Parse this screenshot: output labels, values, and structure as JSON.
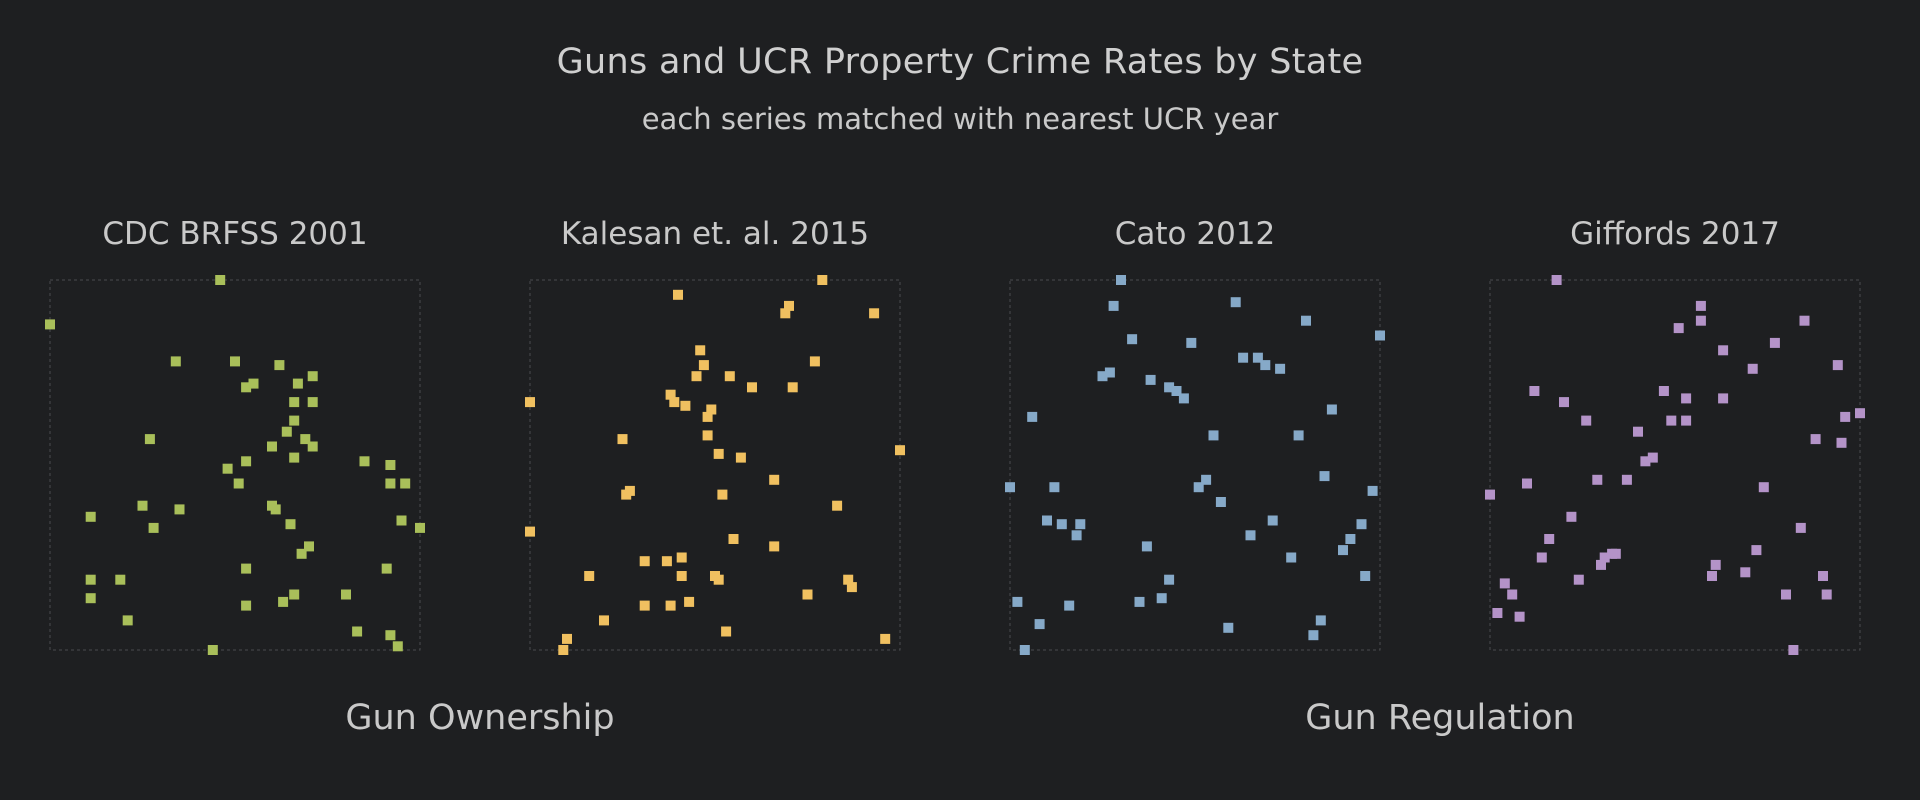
{
  "chart_data": {
    "type": "scatter",
    "title": "Guns and UCR Property Crime Rates by State",
    "subtitle": "each series matched with nearest UCR year",
    "groups": [
      "Gun Ownership",
      "Gun Regulation"
    ],
    "grid": false,
    "xlim": [
      0,
      1
    ],
    "ylim": [
      0,
      1
    ],
    "panels": [
      {
        "name": "CDC BRFSS 2001",
        "group": "Gun Ownership",
        "color": "#a9bf5a",
        "points": [
          [
            0.46,
            1.0
          ],
          [
            0.0,
            0.88
          ],
          [
            0.34,
            0.78
          ],
          [
            0.5,
            0.78
          ],
          [
            0.62,
            0.77
          ],
          [
            0.71,
            0.74
          ],
          [
            0.67,
            0.72
          ],
          [
            0.53,
            0.71
          ],
          [
            0.55,
            0.72
          ],
          [
            0.66,
            0.67
          ],
          [
            0.71,
            0.67
          ],
          [
            0.66,
            0.62
          ],
          [
            0.64,
            0.59
          ],
          [
            0.69,
            0.57
          ],
          [
            0.27,
            0.57
          ],
          [
            0.6,
            0.55
          ],
          [
            0.71,
            0.55
          ],
          [
            0.85,
            0.51
          ],
          [
            0.92,
            0.5
          ],
          [
            0.48,
            0.49
          ],
          [
            0.53,
            0.51
          ],
          [
            0.66,
            0.52
          ],
          [
            0.51,
            0.45
          ],
          [
            0.92,
            0.45
          ],
          [
            0.96,
            0.45
          ],
          [
            0.25,
            0.39
          ],
          [
            0.6,
            0.39
          ],
          [
            0.61,
            0.38
          ],
          [
            0.35,
            0.38
          ],
          [
            0.11,
            0.36
          ],
          [
            0.65,
            0.34
          ],
          [
            0.95,
            0.35
          ],
          [
            1.0,
            0.33
          ],
          [
            0.28,
            0.33
          ],
          [
            0.7,
            0.28
          ],
          [
            0.68,
            0.26
          ],
          [
            0.53,
            0.22
          ],
          [
            0.91,
            0.22
          ],
          [
            0.11,
            0.19
          ],
          [
            0.19,
            0.19
          ],
          [
            0.66,
            0.15
          ],
          [
            0.8,
            0.15
          ],
          [
            0.63,
            0.13
          ],
          [
            0.53,
            0.12
          ],
          [
            0.11,
            0.14
          ],
          [
            0.21,
            0.08
          ],
          [
            0.83,
            0.05
          ],
          [
            0.92,
            0.04
          ],
          [
            0.94,
            0.01
          ],
          [
            0.44,
            0.0
          ]
        ]
      },
      {
        "name": "Kalesan et. al. 2015",
        "group": "Gun Ownership",
        "color": "#f0c060",
        "points": [
          [
            0.79,
            1.0
          ],
          [
            0.4,
            0.96
          ],
          [
            0.7,
            0.93
          ],
          [
            0.69,
            0.91
          ],
          [
            0.93,
            0.91
          ],
          [
            0.46,
            0.81
          ],
          [
            0.77,
            0.78
          ],
          [
            0.47,
            0.77
          ],
          [
            0.45,
            0.74
          ],
          [
            0.54,
            0.74
          ],
          [
            0.6,
            0.71
          ],
          [
            0.71,
            0.71
          ],
          [
            0.38,
            0.69
          ],
          [
            0.39,
            0.67
          ],
          [
            0.42,
            0.66
          ],
          [
            0.49,
            0.65
          ],
          [
            0.48,
            0.63
          ],
          [
            0.0,
            0.67
          ],
          [
            0.48,
            0.58
          ],
          [
            0.25,
            0.57
          ],
          [
            0.51,
            0.53
          ],
          [
            0.57,
            0.52
          ],
          [
            1.0,
            0.54
          ],
          [
            0.66,
            0.46
          ],
          [
            0.26,
            0.42
          ],
          [
            0.27,
            0.43
          ],
          [
            0.52,
            0.42
          ],
          [
            0.83,
            0.39
          ],
          [
            0.0,
            0.32
          ],
          [
            0.55,
            0.3
          ],
          [
            0.66,
            0.28
          ],
          [
            0.41,
            0.25
          ],
          [
            0.31,
            0.24
          ],
          [
            0.37,
            0.24
          ],
          [
            0.41,
            0.2
          ],
          [
            0.16,
            0.2
          ],
          [
            0.51,
            0.19
          ],
          [
            0.5,
            0.2
          ],
          [
            0.86,
            0.19
          ],
          [
            0.87,
            0.17
          ],
          [
            0.75,
            0.15
          ],
          [
            0.43,
            0.13
          ],
          [
            0.31,
            0.12
          ],
          [
            0.38,
            0.12
          ],
          [
            0.2,
            0.08
          ],
          [
            0.53,
            0.05
          ],
          [
            0.96,
            0.03
          ],
          [
            0.1,
            0.03
          ],
          [
            0.09,
            0.0
          ]
        ]
      },
      {
        "name": "Cato 2012",
        "group": "Gun Regulation",
        "color": "#86a9c8",
        "points": [
          [
            0.3,
            1.0
          ],
          [
            0.61,
            0.94
          ],
          [
            0.28,
            0.93
          ],
          [
            0.8,
            0.89
          ],
          [
            0.33,
            0.84
          ],
          [
            0.49,
            0.83
          ],
          [
            1.0,
            0.85
          ],
          [
            0.63,
            0.79
          ],
          [
            0.67,
            0.79
          ],
          [
            0.69,
            0.77
          ],
          [
            0.73,
            0.76
          ],
          [
            0.27,
            0.75
          ],
          [
            0.25,
            0.74
          ],
          [
            0.38,
            0.73
          ],
          [
            0.43,
            0.71
          ],
          [
            0.45,
            0.7
          ],
          [
            0.47,
            0.68
          ],
          [
            0.87,
            0.65
          ],
          [
            0.06,
            0.63
          ],
          [
            0.55,
            0.58
          ],
          [
            0.78,
            0.58
          ],
          [
            0.85,
            0.47
          ],
          [
            0.53,
            0.46
          ],
          [
            0.51,
            0.44
          ],
          [
            0.12,
            0.44
          ],
          [
            0.0,
            0.44
          ],
          [
            0.98,
            0.43
          ],
          [
            0.57,
            0.4
          ],
          [
            0.1,
            0.35
          ],
          [
            0.14,
            0.34
          ],
          [
            0.19,
            0.34
          ],
          [
            0.71,
            0.35
          ],
          [
            0.95,
            0.34
          ],
          [
            0.18,
            0.31
          ],
          [
            0.65,
            0.31
          ],
          [
            0.92,
            0.3
          ],
          [
            0.37,
            0.28
          ],
          [
            0.9,
            0.27
          ],
          [
            0.76,
            0.25
          ],
          [
            0.43,
            0.19
          ],
          [
            0.96,
            0.2
          ],
          [
            0.35,
            0.13
          ],
          [
            0.41,
            0.14
          ],
          [
            0.02,
            0.13
          ],
          [
            0.16,
            0.12
          ],
          [
            0.84,
            0.08
          ],
          [
            0.59,
            0.06
          ],
          [
            0.08,
            0.07
          ],
          [
            0.82,
            0.04
          ],
          [
            0.04,
            0.0
          ]
        ]
      },
      {
        "name": "Giffords 2017",
        "group": "Gun Regulation",
        "color": "#b493c8",
        "points": [
          [
            0.18,
            1.0
          ],
          [
            0.57,
            0.93
          ],
          [
            0.57,
            0.89
          ],
          [
            0.51,
            0.87
          ],
          [
            0.85,
            0.89
          ],
          [
            0.77,
            0.83
          ],
          [
            0.63,
            0.81
          ],
          [
            0.71,
            0.76
          ],
          [
            0.94,
            0.77
          ],
          [
            0.12,
            0.7
          ],
          [
            0.47,
            0.7
          ],
          [
            0.2,
            0.67
          ],
          [
            0.53,
            0.68
          ],
          [
            0.26,
            0.62
          ],
          [
            0.49,
            0.62
          ],
          [
            0.53,
            0.62
          ],
          [
            0.63,
            0.68
          ],
          [
            1.0,
            0.64
          ],
          [
            0.96,
            0.63
          ],
          [
            0.4,
            0.59
          ],
          [
            0.88,
            0.57
          ],
          [
            0.95,
            0.56
          ],
          [
            0.44,
            0.52
          ],
          [
            0.42,
            0.51
          ],
          [
            0.29,
            0.46
          ],
          [
            0.37,
            0.46
          ],
          [
            0.1,
            0.45
          ],
          [
            0.74,
            0.44
          ],
          [
            0.0,
            0.42
          ],
          [
            0.22,
            0.36
          ],
          [
            0.84,
            0.33
          ],
          [
            0.16,
            0.3
          ],
          [
            0.34,
            0.26
          ],
          [
            0.31,
            0.25
          ],
          [
            0.33,
            0.26
          ],
          [
            0.72,
            0.27
          ],
          [
            0.14,
            0.25
          ],
          [
            0.3,
            0.23
          ],
          [
            0.61,
            0.23
          ],
          [
            0.69,
            0.21
          ],
          [
            0.6,
            0.2
          ],
          [
            0.9,
            0.2
          ],
          [
            0.24,
            0.19
          ],
          [
            0.04,
            0.18
          ],
          [
            0.8,
            0.15
          ],
          [
            0.91,
            0.15
          ],
          [
            0.06,
            0.15
          ],
          [
            0.02,
            0.1
          ],
          [
            0.08,
            0.09
          ],
          [
            0.82,
            0.0
          ]
        ]
      }
    ]
  }
}
